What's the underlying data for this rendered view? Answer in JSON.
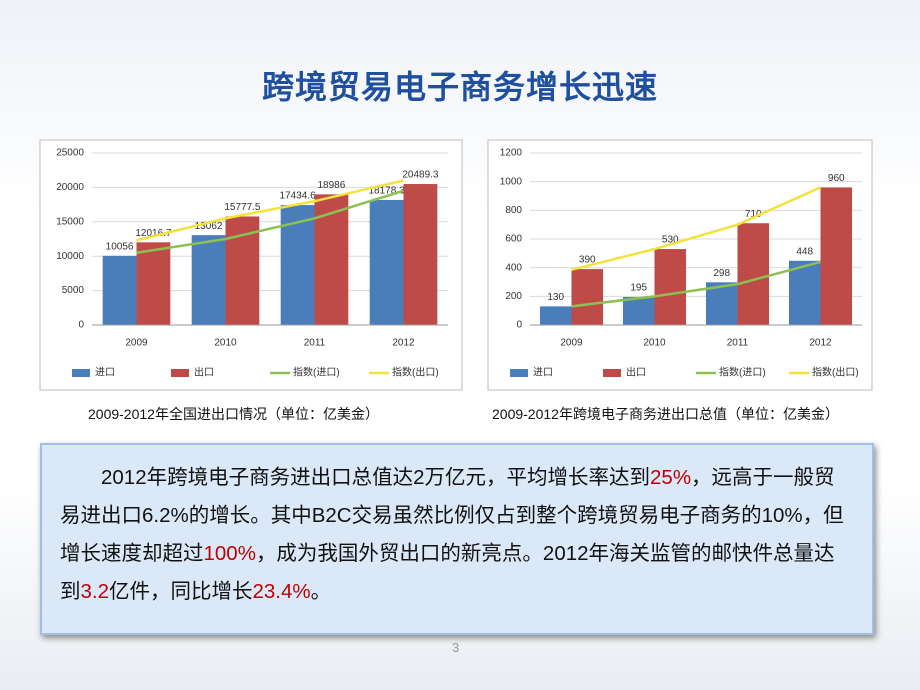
{
  "title": "跨境贸易电子商务增长迅速",
  "page_number": "3",
  "paragraph": {
    "highlight_color": "#c00000",
    "segments": [
      {
        "text": "2012年跨境电子商务进出口总值达2万亿元，平均增长率达到"
      },
      {
        "text": "25%",
        "emphasis": true
      },
      {
        "text": "，远高于一般贸易进出口6.2%的增长。其中B2C交易虽然比例仅占到整个跨境贸易电子商务的10%，但增长速度却超过"
      },
      {
        "text": "100%",
        "emphasis": true
      },
      {
        "text": "，成为我国外贸出口的新亮点。2012年海关监管的邮快件总量达到"
      },
      {
        "text": "3.2",
        "emphasis": true
      },
      {
        "text": "亿件，同比增长"
      },
      {
        "text": "23.4%",
        "emphasis": true
      },
      {
        "text": "。"
      }
    ]
  },
  "chart_data": [
    {
      "type": "bar",
      "title": "2009-2012年全国进出口情况（单位：亿美金）",
      "categories": [
        "2009",
        "2010",
        "2011",
        "2012"
      ],
      "ylim": [
        0,
        25000
      ],
      "yticks": [
        0,
        5000,
        10000,
        15000,
        20000,
        25000
      ],
      "grid": true,
      "series": [
        {
          "name": "进口",
          "type": "bar",
          "color": "#4a7ebb",
          "values": [
            10056,
            13062,
            17434.6,
            18178.3
          ]
        },
        {
          "name": "出口",
          "type": "bar",
          "color": "#be4b48",
          "values": [
            12016.7,
            15777.5,
            18986,
            20489.3
          ]
        },
        {
          "name": "指数(进口)",
          "type": "line",
          "color": "#8cc152",
          "values": [
            10500,
            12500,
            15500,
            19500
          ]
        },
        {
          "name": "指数(出口)",
          "type": "line",
          "color": "#f2e33a",
          "values": [
            12300,
            15500,
            18000,
            21000
          ]
        }
      ]
    },
    {
      "type": "bar",
      "title": "2009-2012年跨境电子商务进出口总值（单位：亿美金）",
      "categories": [
        "2009",
        "2010",
        "2011",
        "2012"
      ],
      "ylim": [
        0,
        1200
      ],
      "yticks": [
        0,
        200,
        400,
        600,
        800,
        1000,
        1200
      ],
      "grid": true,
      "series": [
        {
          "name": "进口",
          "type": "bar",
          "color": "#4a7ebb",
          "values": [
            130,
            195,
            298,
            448
          ]
        },
        {
          "name": "出口",
          "type": "bar",
          "color": "#be4b48",
          "values": [
            390,
            530,
            710,
            960
          ]
        },
        {
          "name": "指数(进口)",
          "type": "line",
          "color": "#8cc152",
          "values": [
            130,
            200,
            285,
            440
          ]
        },
        {
          "name": "指数(出口)",
          "type": "line",
          "color": "#f2e33a",
          "values": [
            385,
            530,
            700,
            960
          ]
        }
      ]
    }
  ]
}
